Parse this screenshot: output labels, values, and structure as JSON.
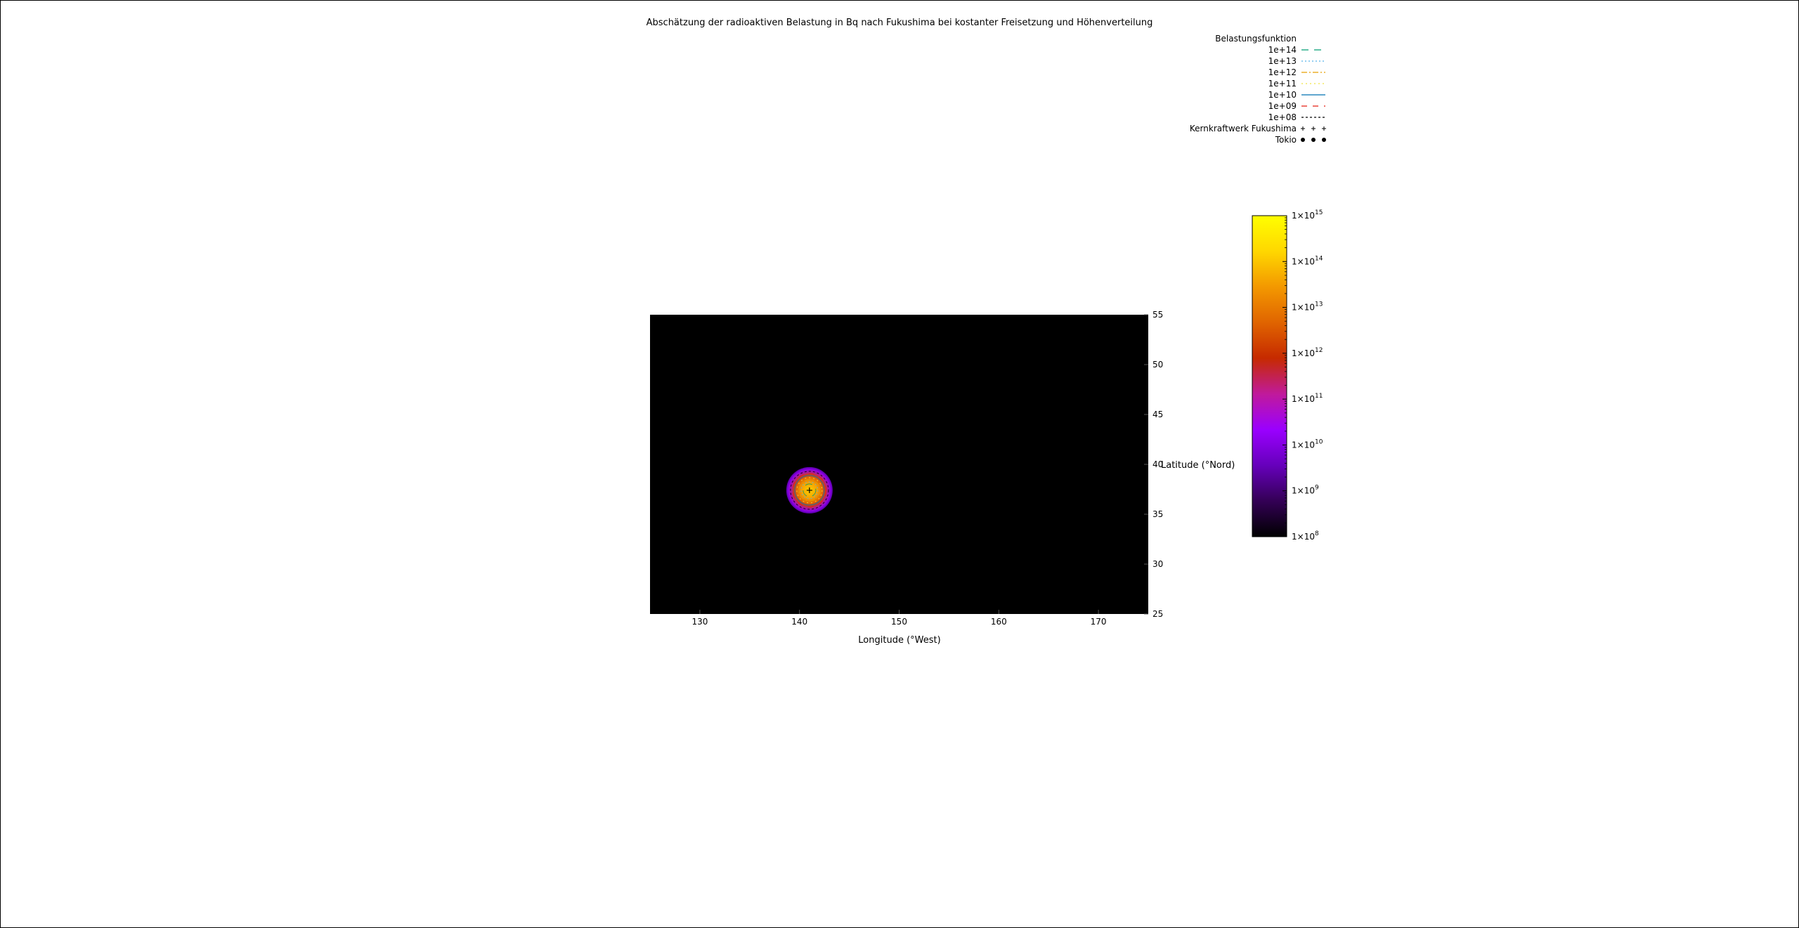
{
  "chart_data": {
    "type": "heatmap",
    "title": "Abschätzung der radioaktiven Belastung in Bq nach Fukushima bei kostanter Freisetzung und Höhenverteilung",
    "xlabel": "Longitude (°West)",
    "ylabel": "Latitude (°Nord)",
    "xlim": [
      125,
      175
    ],
    "ylim": [
      25,
      55
    ],
    "xticks": [
      130,
      140,
      150,
      160,
      170
    ],
    "yticks": [
      25,
      30,
      35,
      40,
      45,
      50,
      55
    ],
    "background_color": "#000000",
    "colorbar": {
      "scale": "log",
      "range": [
        100000000,
        1000000000000000
      ],
      "tick_exponents": [
        15,
        14,
        13,
        12,
        11,
        10,
        9,
        8
      ],
      "tick_base": "1×10",
      "palette": [
        "#000000",
        "#330055",
        "#6600bb",
        "#9a00ff",
        "#c01a9c",
        "#c62a00",
        "#e06400",
        "#f39800",
        "#ffd700",
        "#ffff00"
      ]
    },
    "legend": {
      "title": "Belastungsfunktion",
      "placement": "top-right",
      "entries": [
        {
          "label": "1e+14",
          "color": "#009e73",
          "dash": "10,8"
        },
        {
          "label": "1e+13",
          "color": "#56b4e9",
          "dash": "2,3"
        },
        {
          "label": "1e+12",
          "color": "#e69f00",
          "dash": "8,3,2,3"
        },
        {
          "label": "1e+11",
          "color": "#f0e442",
          "dash": "2,4"
        },
        {
          "label": "1e+10",
          "color": "#0072b2",
          "dash": ""
        },
        {
          "label": "1e+09",
          "color": "#e51e10",
          "dash": "8,8"
        },
        {
          "label": "1e+08",
          "color": "#000000",
          "dash": "3,3"
        }
      ],
      "point_entries": [
        {
          "label": "Kernkraftwerk Fukushima",
          "marker": "plus"
        },
        {
          "label": "Tokio",
          "marker": "circle"
        }
      ]
    },
    "source": {
      "lon": 141.0,
      "lat": 37.4
    },
    "tokio": {
      "lon": 139.7,
      "lat": 35.7
    }
  }
}
